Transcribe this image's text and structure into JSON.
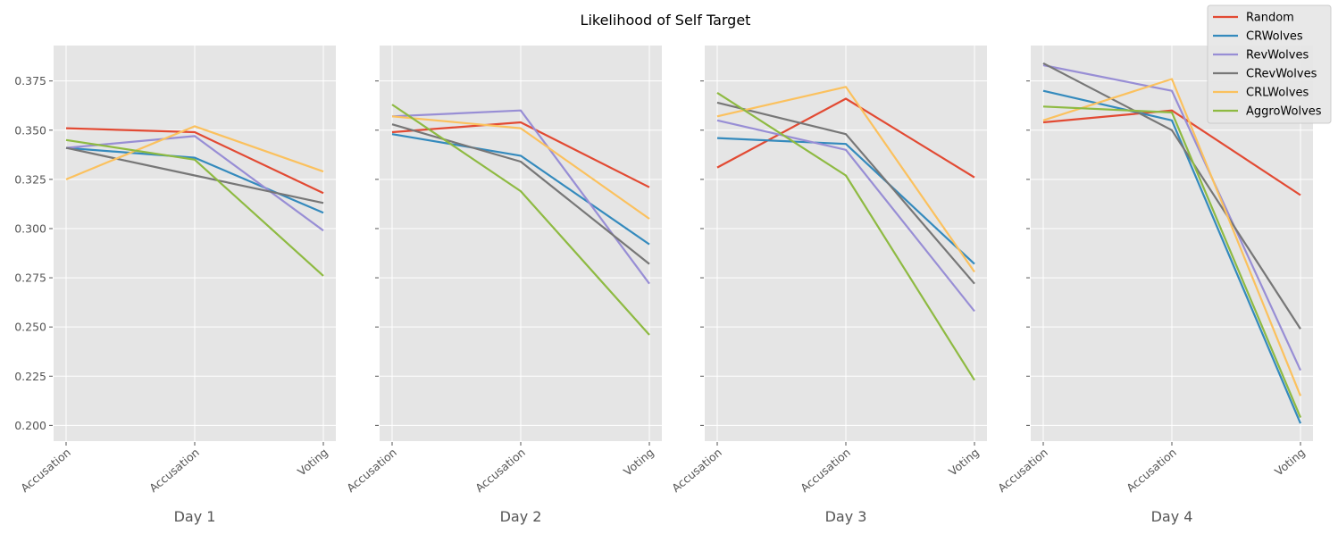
{
  "chart_data": {
    "type": "line",
    "title": "Likelihood of Self Target",
    "ylim": [
      0.192,
      0.393
    ],
    "yticks": [
      0.2,
      0.225,
      0.25,
      0.275,
      0.3,
      0.325,
      0.35,
      0.375
    ],
    "ytick_labels": [
      "0.200",
      "0.225",
      "0.250",
      "0.275",
      "0.300",
      "0.325",
      "0.350",
      "0.375"
    ],
    "grid": true,
    "sharey": true,
    "legend_position": "top-right",
    "panels": [
      {
        "xlabel": "Day 1",
        "categories": [
          "Accusation",
          "Accusation",
          "Voting"
        ],
        "series": [
          {
            "name": "Random",
            "color": "#E24A33",
            "values": [
              0.351,
              0.349,
              0.318
            ]
          },
          {
            "name": "CRWolves",
            "color": "#348ABD",
            "values": [
              0.341,
              0.336,
              0.308
            ]
          },
          {
            "name": "RevWolves",
            "color": "#988ED5",
            "values": [
              0.341,
              0.347,
              0.299
            ]
          },
          {
            "name": "CRevWolves",
            "color": "#777777",
            "values": [
              0.341,
              0.327,
              0.313
            ]
          },
          {
            "name": "CRLWolves",
            "color": "#FBC15E",
            "values": [
              0.325,
              0.352,
              0.329
            ]
          },
          {
            "name": "AggroWolves",
            "color": "#8EBA42",
            "values": [
              0.345,
              0.335,
              0.276
            ]
          }
        ]
      },
      {
        "xlabel": "Day 2",
        "categories": [
          "Accusation",
          "Accusation",
          "Voting"
        ],
        "series": [
          {
            "name": "Random",
            "color": "#E24A33",
            "values": [
              0.349,
              0.354,
              0.321
            ]
          },
          {
            "name": "CRWolves",
            "color": "#348ABD",
            "values": [
              0.348,
              0.337,
              0.292
            ]
          },
          {
            "name": "RevWolves",
            "color": "#988ED5",
            "values": [
              0.357,
              0.36,
              0.272
            ]
          },
          {
            "name": "CRevWolves",
            "color": "#777777",
            "values": [
              0.353,
              0.334,
              0.282
            ]
          },
          {
            "name": "CRLWolves",
            "color": "#FBC15E",
            "values": [
              0.357,
              0.351,
              0.305
            ]
          },
          {
            "name": "AggroWolves",
            "color": "#8EBA42",
            "values": [
              0.363,
              0.319,
              0.246
            ]
          }
        ]
      },
      {
        "xlabel": "Day 3",
        "categories": [
          "Accusation",
          "Accusation",
          "Voting"
        ],
        "series": [
          {
            "name": "Random",
            "color": "#E24A33",
            "values": [
              0.331,
              0.366,
              0.326
            ]
          },
          {
            "name": "CRWolves",
            "color": "#348ABD",
            "values": [
              0.346,
              0.343,
              0.282
            ]
          },
          {
            "name": "RevWolves",
            "color": "#988ED5",
            "values": [
              0.355,
              0.34,
              0.258
            ]
          },
          {
            "name": "CRevWolves",
            "color": "#777777",
            "values": [
              0.364,
              0.348,
              0.272
            ]
          },
          {
            "name": "CRLWolves",
            "color": "#FBC15E",
            "values": [
              0.357,
              0.372,
              0.278
            ]
          },
          {
            "name": "AggroWolves",
            "color": "#8EBA42",
            "values": [
              0.369,
              0.327,
              0.223
            ]
          }
        ]
      },
      {
        "xlabel": "Day 4",
        "categories": [
          "Accusation",
          "Accusation",
          "Voting"
        ],
        "series": [
          {
            "name": "Random",
            "color": "#E24A33",
            "values": [
              0.354,
              0.36,
              0.317
            ]
          },
          {
            "name": "CRWolves",
            "color": "#348ABD",
            "values": [
              0.37,
              0.355,
              0.201
            ]
          },
          {
            "name": "RevWolves",
            "color": "#988ED5",
            "values": [
              0.383,
              0.37,
              0.228
            ]
          },
          {
            "name": "CRevWolves",
            "color": "#777777",
            "values": [
              0.384,
              0.35,
              0.249
            ]
          },
          {
            "name": "CRLWolves",
            "color": "#FBC15E",
            "values": [
              0.355,
              0.376,
              0.215
            ]
          },
          {
            "name": "AggroWolves",
            "color": "#8EBA42",
            "values": [
              0.362,
              0.359,
              0.204
            ]
          }
        ]
      }
    ],
    "legend": [
      {
        "name": "Random",
        "color": "#E24A33"
      },
      {
        "name": "CRWolves",
        "color": "#348ABD"
      },
      {
        "name": "RevWolves",
        "color": "#988ED5"
      },
      {
        "name": "CRevWolves",
        "color": "#777777"
      },
      {
        "name": "CRLWolves",
        "color": "#FBC15E"
      },
      {
        "name": "AggroWolves",
        "color": "#8EBA42"
      }
    ],
    "style": {
      "axes_background": "#E5E5E5",
      "grid_color": "#FFFFFF"
    }
  }
}
